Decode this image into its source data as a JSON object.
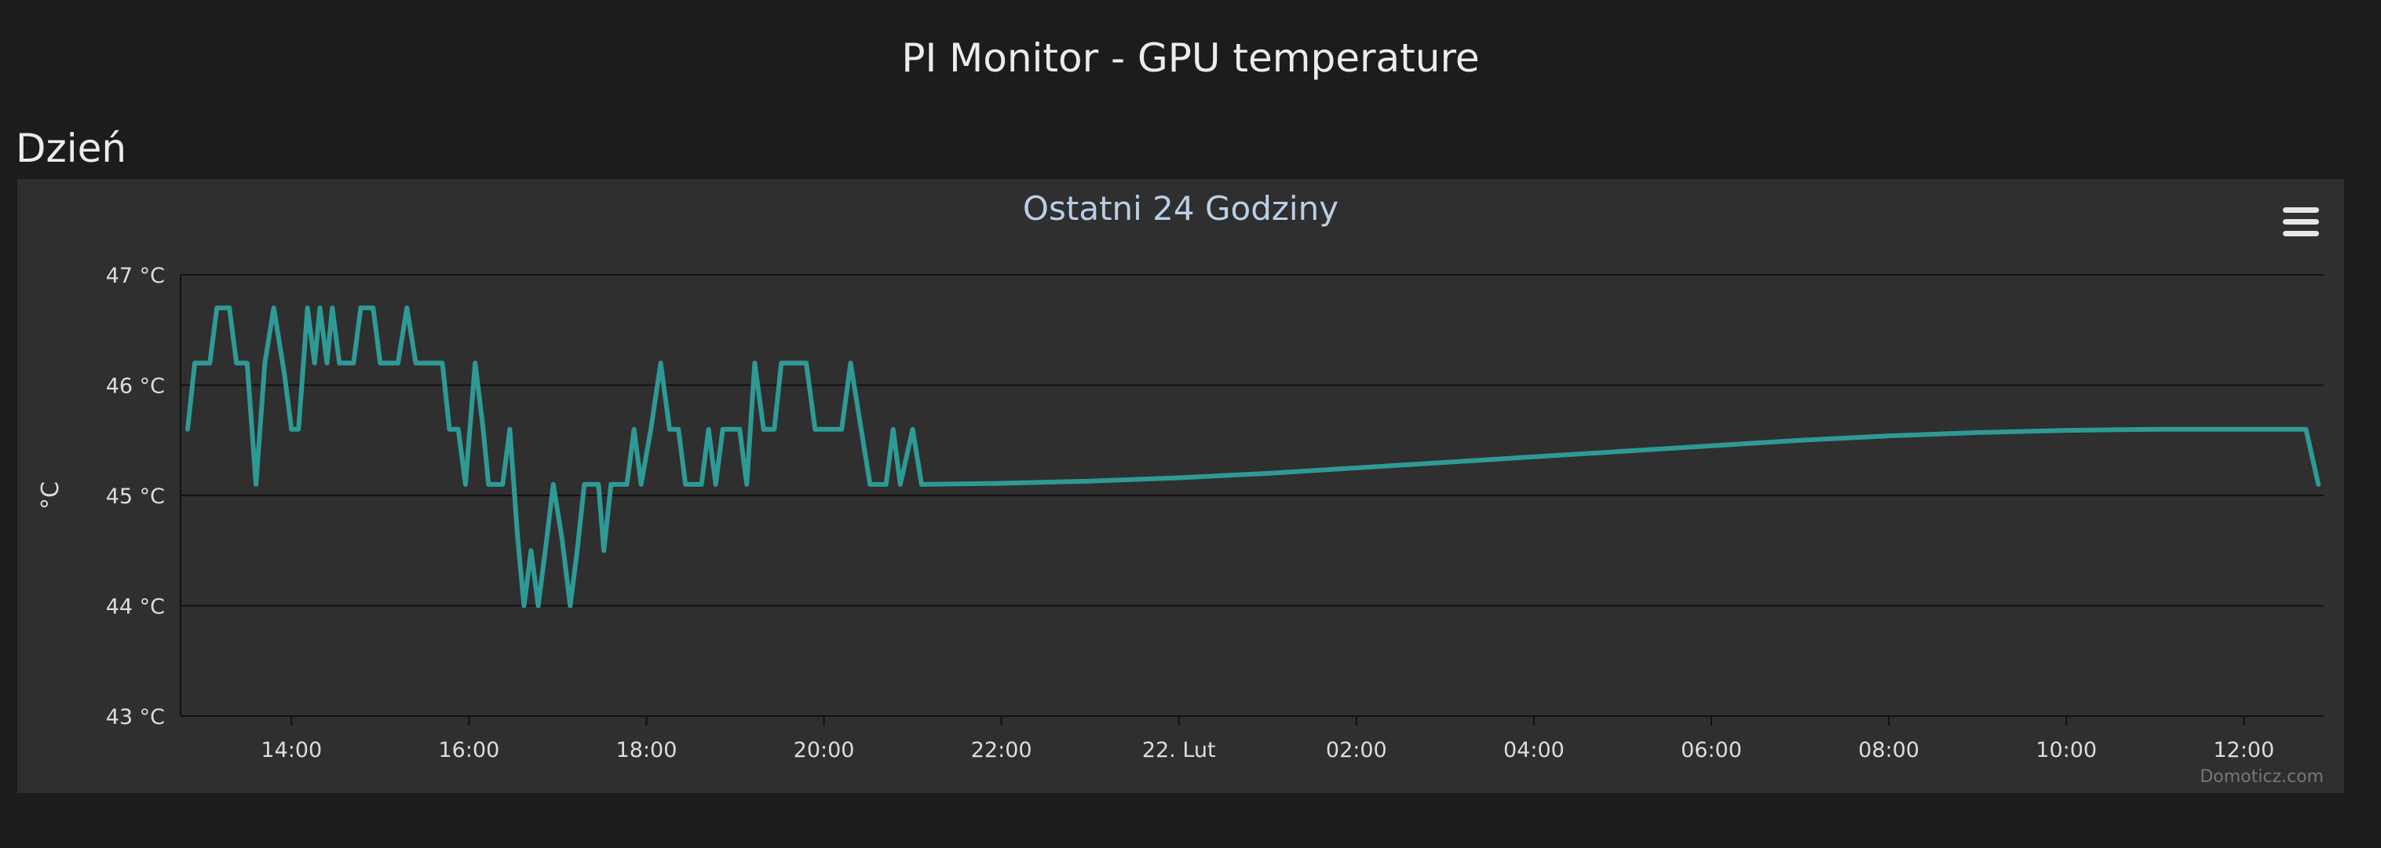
{
  "page": {
    "title": "PI Monitor - GPU temperature",
    "section": "Dzień"
  },
  "menu": {
    "icon": "hamburger-menu-icon"
  },
  "colors": {
    "background": "#1c1c1c",
    "panel": "#2f2f2f",
    "series": "#2e9a96",
    "gridline": "#111111",
    "title": "#b9cfe8",
    "tick_text": "#dddddd",
    "credit_text": "#777777"
  },
  "chart_data": {
    "type": "line",
    "title": "Ostatni 24 Godziny",
    "ylabel": "°C",
    "xlabel": "",
    "ylim": [
      43,
      47
    ],
    "y_ticks": [
      43,
      44,
      45,
      46,
      47
    ],
    "y_tick_labels": [
      "43 °C",
      "44 °C",
      "45 °C",
      "46 °C",
      "47 °C"
    ],
    "x_range_hours": [
      12.75,
      36.9
    ],
    "x_ticks": [
      {
        "hour": 14,
        "label": "14:00"
      },
      {
        "hour": 16,
        "label": "16:00"
      },
      {
        "hour": 18,
        "label": "18:00"
      },
      {
        "hour": 20,
        "label": "20:00"
      },
      {
        "hour": 22,
        "label": "22:00"
      },
      {
        "hour": 24,
        "label": "22. Lut"
      },
      {
        "hour": 26,
        "label": "02:00"
      },
      {
        "hour": 28,
        "label": "04:00"
      },
      {
        "hour": 30,
        "label": "06:00"
      },
      {
        "hour": 32,
        "label": "08:00"
      },
      {
        "hour": 34,
        "label": "10:00"
      },
      {
        "hour": 36,
        "label": "12:00"
      }
    ],
    "grid": true,
    "legend": "none",
    "credit": "Domoticz.com",
    "series": [
      {
        "points": [
          [
            12.83,
            45.6
          ],
          [
            12.91,
            46.2
          ],
          [
            13.08,
            46.2
          ],
          [
            13.16,
            46.7
          ],
          [
            13.3,
            46.7
          ],
          [
            13.38,
            46.2
          ],
          [
            13.5,
            46.2
          ],
          [
            13.6,
            45.1
          ],
          [
            13.7,
            46.2
          ],
          [
            13.8,
            46.7
          ],
          [
            13.92,
            46.1
          ],
          [
            14.0,
            45.6
          ],
          [
            14.08,
            45.6
          ],
          [
            14.18,
            46.7
          ],
          [
            14.26,
            46.2
          ],
          [
            14.32,
            46.7
          ],
          [
            14.4,
            46.2
          ],
          [
            14.46,
            46.7
          ],
          [
            14.54,
            46.2
          ],
          [
            14.7,
            46.2
          ],
          [
            14.78,
            46.7
          ],
          [
            14.92,
            46.7
          ],
          [
            15.0,
            46.2
          ],
          [
            15.2,
            46.2
          ],
          [
            15.3,
            46.7
          ],
          [
            15.4,
            46.2
          ],
          [
            15.7,
            46.2
          ],
          [
            15.78,
            45.6
          ],
          [
            15.88,
            45.6
          ],
          [
            15.96,
            45.1
          ],
          [
            16.07,
            46.2
          ],
          [
            16.16,
            45.6
          ],
          [
            16.22,
            45.1
          ],
          [
            16.38,
            45.1
          ],
          [
            16.46,
            45.6
          ],
          [
            16.55,
            44.6
          ],
          [
            16.62,
            44.0
          ],
          [
            16.7,
            44.5
          ],
          [
            16.78,
            44.0
          ],
          [
            16.86,
            44.5
          ],
          [
            16.95,
            45.1
          ],
          [
            17.05,
            44.6
          ],
          [
            17.14,
            44.0
          ],
          [
            17.22,
            44.5
          ],
          [
            17.3,
            45.1
          ],
          [
            17.46,
            45.1
          ],
          [
            17.52,
            44.5
          ],
          [
            17.6,
            45.1
          ],
          [
            17.78,
            45.1
          ],
          [
            17.86,
            45.6
          ],
          [
            17.94,
            45.1
          ],
          [
            18.05,
            45.6
          ],
          [
            18.16,
            46.2
          ],
          [
            18.26,
            45.6
          ],
          [
            18.36,
            45.6
          ],
          [
            18.44,
            45.1
          ],
          [
            18.62,
            45.1
          ],
          [
            18.7,
            45.6
          ],
          [
            18.78,
            45.1
          ],
          [
            18.86,
            45.6
          ],
          [
            19.05,
            45.6
          ],
          [
            19.13,
            45.1
          ],
          [
            19.22,
            46.2
          ],
          [
            19.32,
            45.6
          ],
          [
            19.44,
            45.6
          ],
          [
            19.52,
            46.2
          ],
          [
            19.8,
            46.2
          ],
          [
            19.9,
            45.6
          ],
          [
            20.2,
            45.6
          ],
          [
            20.3,
            46.2
          ],
          [
            20.42,
            45.6
          ],
          [
            20.52,
            45.1
          ],
          [
            20.7,
            45.1
          ],
          [
            20.78,
            45.6
          ],
          [
            20.86,
            45.1
          ],
          [
            21.0,
            45.6
          ],
          [
            21.1,
            45.1
          ],
          [
            22.0,
            45.11
          ],
          [
            23.0,
            45.13
          ],
          [
            24.0,
            45.16
          ],
          [
            25.0,
            45.2
          ],
          [
            26.0,
            45.25
          ],
          [
            27.0,
            45.3
          ],
          [
            28.0,
            45.35
          ],
          [
            29.0,
            45.4
          ],
          [
            30.0,
            45.45
          ],
          [
            31.0,
            45.5
          ],
          [
            32.0,
            45.54
          ],
          [
            33.0,
            45.57
          ],
          [
            34.0,
            45.59
          ],
          [
            35.0,
            45.6
          ],
          [
            36.0,
            45.6
          ],
          [
            36.7,
            45.6
          ],
          [
            36.84,
            45.1
          ]
        ]
      }
    ]
  }
}
